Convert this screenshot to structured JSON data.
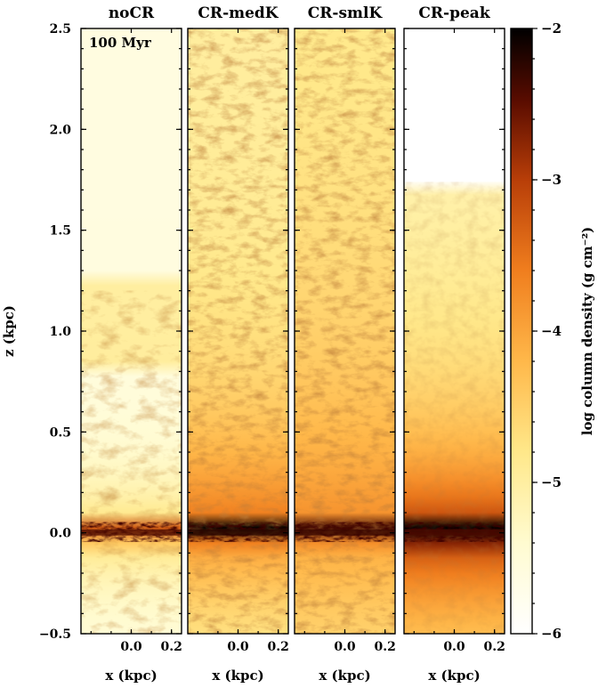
{
  "chart_data": {
    "type": "heatmap",
    "annotation": "100 Myr",
    "panels": [
      {
        "title": "noCR",
        "disk_max_log": -2.4,
        "wind_extent_kpc": 1.2,
        "top_cut_kpc": null
      },
      {
        "title": "CR-medK",
        "disk_max_log": -2.2,
        "wind_extent_kpc": 2.5,
        "top_cut_kpc": null
      },
      {
        "title": "CR-smlK",
        "disk_max_log": -2.3,
        "wind_extent_kpc": 2.5,
        "top_cut_kpc": null
      },
      {
        "title": "CR-peak",
        "disk_max_log": -2.4,
        "wind_extent_kpc": 1.74,
        "top_cut_kpc": 1.74
      }
    ],
    "xlabel": "x (kpc)",
    "ylabel": "z (kpc)",
    "x_ticks": [
      "0.0",
      "0.2"
    ],
    "x_range_kpc": [
      -0.25,
      0.25
    ],
    "y_ticks": [
      "−0.5",
      "0.0",
      "0.5",
      "1.0",
      "1.5",
      "2.0",
      "2.5"
    ],
    "ylim": [
      -0.5,
      2.5
    ],
    "colorbar": {
      "label": "log column density (g cm⁻²)",
      "ticks": [
        "−2",
        "−3",
        "−4",
        "−5",
        "−6"
      ],
      "range": [
        -6,
        -2
      ],
      "cmap": "afmhot_r"
    }
  }
}
